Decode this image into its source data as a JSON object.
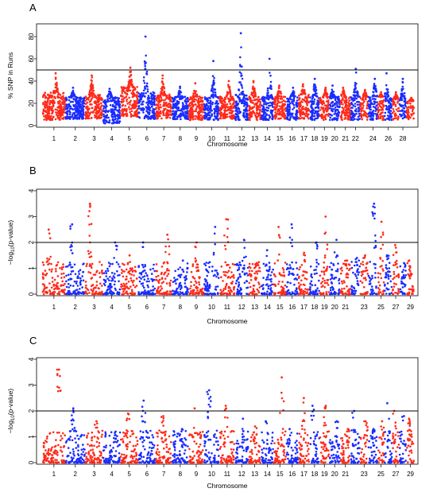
{
  "colors": {
    "odd_chromosome": "#ff2a1a",
    "even_chromosome": "#1a2cff",
    "threshold_line": "#000000",
    "axes": "#000000"
  },
  "chart_data": [
    {
      "panel": "A",
      "type": "scatter",
      "ylabel": "% SNP in Runs",
      "xlabel": "Chromosome",
      "ylim": [
        0,
        90
      ],
      "yticks": [
        0,
        20,
        40,
        60,
        80
      ],
      "threshold": 50,
      "grid": false,
      "chromosomes": [
        "1",
        "2",
        "3",
        "4",
        "5",
        "6",
        "7",
        "8",
        "9",
        "10",
        "11",
        "12",
        "13",
        "14",
        "15",
        "16",
        "17",
        "18",
        "19",
        "20",
        "21",
        "22",
        "23",
        "24",
        "25",
        "26",
        "27",
        "28",
        "29"
      ],
      "xtick_labels": [
        "1",
        "2",
        "3",
        "4",
        "5",
        "6",
        "7",
        "8",
        "9",
        "10",
        "11",
        "12",
        "13",
        "14",
        "15",
        "16",
        "17",
        "18",
        "19",
        "20",
        "21",
        "22",
        "24",
        "26",
        "28"
      ],
      "series": [
        {
          "chromosome": "1",
          "typical_range": [
            5,
            30
          ],
          "peak": 47
        },
        {
          "chromosome": "2",
          "typical_range": [
            6,
            26
          ],
          "peak": 34
        },
        {
          "chromosome": "3",
          "typical_range": [
            6,
            28
          ],
          "peak": 45
        },
        {
          "chromosome": "4",
          "typical_range": [
            2,
            26
          ],
          "peak": 33
        },
        {
          "chromosome": "5",
          "typical_range": [
            8,
            35
          ],
          "peak": 52
        },
        {
          "chromosome": "6",
          "typical_range": [
            6,
            30
          ],
          "peak": 80
        },
        {
          "chromosome": "7",
          "typical_range": [
            6,
            28
          ],
          "peak": 45
        },
        {
          "chromosome": "8",
          "typical_range": [
            5,
            26
          ],
          "peak": 35
        },
        {
          "chromosome": "9",
          "typical_range": [
            5,
            26
          ],
          "peak": 38
        },
        {
          "chromosome": "10",
          "typical_range": [
            5,
            26
          ],
          "peak": 58
        },
        {
          "chromosome": "11",
          "typical_range": [
            6,
            26
          ],
          "peak": 40
        },
        {
          "chromosome": "12",
          "typical_range": [
            5,
            28
          ],
          "peak": 83
        },
        {
          "chromosome": "13",
          "typical_range": [
            5,
            26
          ],
          "peak": 40
        },
        {
          "chromosome": "14",
          "typical_range": [
            5,
            26
          ],
          "peak": 60
        },
        {
          "chromosome": "15",
          "typical_range": [
            6,
            26
          ],
          "peak": 36
        },
        {
          "chromosome": "16",
          "typical_range": [
            5,
            26
          ],
          "peak": 34
        },
        {
          "chromosome": "17",
          "typical_range": [
            6,
            28
          ],
          "peak": 37
        },
        {
          "chromosome": "18",
          "typical_range": [
            5,
            26
          ],
          "peak": 42
        },
        {
          "chromosome": "19",
          "typical_range": [
            5,
            26
          ],
          "peak": 34
        },
        {
          "chromosome": "20",
          "typical_range": [
            5,
            26
          ],
          "peak": 36
        },
        {
          "chromosome": "21",
          "typical_range": [
            5,
            26
          ],
          "peak": 34
        },
        {
          "chromosome": "22",
          "typical_range": [
            5,
            26
          ],
          "peak": 51
        },
        {
          "chromosome": "23",
          "typical_range": [
            5,
            26
          ],
          "peak": 32
        },
        {
          "chromosome": "24",
          "typical_range": [
            5,
            26
          ],
          "peak": 42
        },
        {
          "chromosome": "25",
          "typical_range": [
            5,
            26
          ],
          "peak": 30
        },
        {
          "chromosome": "26",
          "typical_range": [
            5,
            26
          ],
          "peak": 47
        },
        {
          "chromosome": "27",
          "typical_range": [
            5,
            24
          ],
          "peak": 30
        },
        {
          "chromosome": "28",
          "typical_range": [
            5,
            24
          ],
          "peak": 42
        },
        {
          "chromosome": "29",
          "typical_range": [
            5,
            22
          ],
          "peak": 25
        }
      ]
    },
    {
      "panel": "B",
      "type": "scatter",
      "ylabel_pre": "−log",
      "ylabel_sub": "10",
      "ylabel_post": "(p-value)",
      "xlabel": "Chromosome",
      "ylim": [
        0,
        4
      ],
      "yticks": [
        0,
        1,
        2,
        3,
        4
      ],
      "threshold": 2,
      "grid": false,
      "chromosomes": [
        "1",
        "2",
        "3",
        "4",
        "5",
        "6",
        "7",
        "8",
        "9",
        "10",
        "11",
        "12",
        "13",
        "14",
        "15",
        "16",
        "17",
        "18",
        "19",
        "20",
        "21",
        "22",
        "23",
        "24",
        "25",
        "26",
        "27",
        "28",
        "29"
      ],
      "xtick_labels": [
        "1",
        "2",
        "3",
        "4",
        "5",
        "6",
        "7",
        "8",
        "9",
        "10",
        "11",
        "12",
        "13",
        "14",
        "15",
        "16",
        "17",
        "18",
        "19",
        "20",
        "21",
        "23",
        "25",
        "27",
        "29"
      ],
      "series": [
        {
          "chromosome": "1",
          "peak": 2.5
        },
        {
          "chromosome": "2",
          "peak": 2.7
        },
        {
          "chromosome": "3",
          "peak": 3.5
        },
        {
          "chromosome": "4",
          "peak": 2.0
        },
        {
          "chromosome": "5",
          "peak": 1.5
        },
        {
          "chromosome": "6",
          "peak": 2.0
        },
        {
          "chromosome": "7",
          "peak": 2.3
        },
        {
          "chromosome": "8",
          "peak": 1.3
        },
        {
          "chromosome": "9",
          "peak": 2.0
        },
        {
          "chromosome": "10",
          "peak": 2.6
        },
        {
          "chromosome": "11",
          "peak": 2.9
        },
        {
          "chromosome": "12",
          "peak": 2.1
        },
        {
          "chromosome": "13",
          "peak": 1.2
        },
        {
          "chromosome": "14",
          "peak": 1.7
        },
        {
          "chromosome": "15",
          "peak": 2.6
        },
        {
          "chromosome": "16",
          "peak": 2.7
        },
        {
          "chromosome": "17",
          "peak": 1.6
        },
        {
          "chromosome": "18",
          "peak": 2.0
        },
        {
          "chromosome": "19",
          "peak": 3.0
        },
        {
          "chromosome": "20",
          "peak": 2.1
        },
        {
          "chromosome": "21",
          "peak": 1.3
        },
        {
          "chromosome": "22",
          "peak": 1.4
        },
        {
          "chromosome": "23",
          "peak": 1.5
        },
        {
          "chromosome": "24",
          "peak": 3.5
        },
        {
          "chromosome": "25",
          "peak": 2.8
        },
        {
          "chromosome": "26",
          "peak": 1.5
        },
        {
          "chromosome": "27",
          "peak": 1.9
        },
        {
          "chromosome": "28",
          "peak": 1.2
        },
        {
          "chromosome": "29",
          "peak": 1.3
        }
      ]
    },
    {
      "panel": "C",
      "type": "scatter",
      "ylabel_pre": "−log",
      "ylabel_sub": "10",
      "ylabel_post": "(p-value)",
      "xlabel": "Chromosome",
      "ylim": [
        0,
        4
      ],
      "yticks": [
        0,
        1,
        2,
        3,
        4
      ],
      "threshold": 2,
      "grid": false,
      "chromosomes": [
        "1",
        "2",
        "3",
        "4",
        "5",
        "6",
        "7",
        "8",
        "9",
        "10",
        "11",
        "12",
        "13",
        "14",
        "15",
        "16",
        "17",
        "18",
        "19",
        "20",
        "21",
        "22",
        "23",
        "24",
        "25",
        "26",
        "27",
        "28",
        "29"
      ],
      "xtick_labels": [
        "1",
        "2",
        "3",
        "4",
        "5",
        "6",
        "7",
        "8",
        "9",
        "10",
        "11",
        "12",
        "13",
        "14",
        "15",
        "16",
        "17",
        "18",
        "19",
        "20",
        "21",
        "23",
        "25",
        "27",
        "29"
      ],
      "series": [
        {
          "chromosome": "1",
          "peak": 3.6
        },
        {
          "chromosome": "2",
          "peak": 2.1
        },
        {
          "chromosome": "3",
          "peak": 1.6
        },
        {
          "chromosome": "4",
          "peak": 1.2
        },
        {
          "chromosome": "5",
          "peak": 1.9
        },
        {
          "chromosome": "6",
          "peak": 2.4
        },
        {
          "chromosome": "7",
          "peak": 1.8
        },
        {
          "chromosome": "8",
          "peak": 1.3
        },
        {
          "chromosome": "9",
          "peak": 2.1
        },
        {
          "chromosome": "10",
          "peak": 2.8
        },
        {
          "chromosome": "11",
          "peak": 2.2
        },
        {
          "chromosome": "12",
          "peak": 1.7
        },
        {
          "chromosome": "13",
          "peak": 1.4
        },
        {
          "chromosome": "14",
          "peak": 1.6
        },
        {
          "chromosome": "15",
          "peak": 3.3
        },
        {
          "chromosome": "16",
          "peak": 1.3
        },
        {
          "chromosome": "17",
          "peak": 2.5
        },
        {
          "chromosome": "18",
          "peak": 2.2
        },
        {
          "chromosome": "19",
          "peak": 2.2
        },
        {
          "chromosome": "20",
          "peak": 1.6
        },
        {
          "chromosome": "21",
          "peak": 1.3
        },
        {
          "chromosome": "22",
          "peak": 2.0
        },
        {
          "chromosome": "23",
          "peak": 1.6
        },
        {
          "chromosome": "24",
          "peak": 1.3
        },
        {
          "chromosome": "25",
          "peak": 1.6
        },
        {
          "chromosome": "26",
          "peak": 2.3
        },
        {
          "chromosome": "27",
          "peak": 2.0
        },
        {
          "chromosome": "28",
          "peak": 1.8
        },
        {
          "chromosome": "29",
          "peak": 1.7
        }
      ]
    }
  ]
}
